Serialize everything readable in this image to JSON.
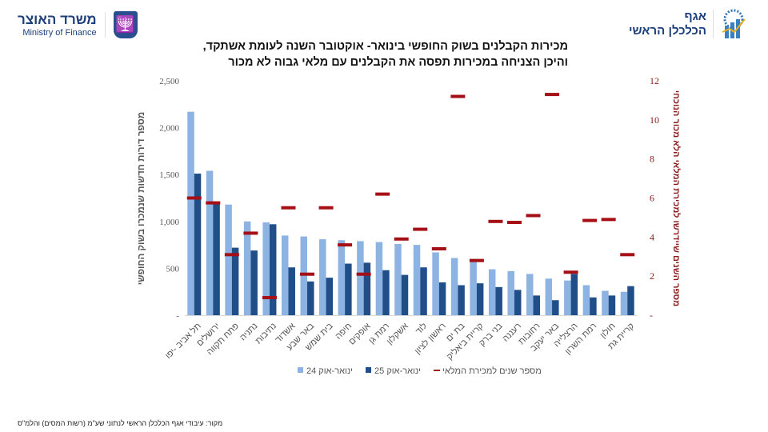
{
  "header": {
    "left_logo": {
      "hebrew": "משרד האוצר",
      "english": "Ministry of Finance"
    },
    "right_logo": {
      "line1": "אגף",
      "line2": "הכלכלן הראשי"
    }
  },
  "title_lines": [
    "מכירות הקבלנים בשוק החופשי בינואר- אוקטובר השנה לעומת אשתקד,",
    "והיכן הצניחה במכירות תפסה את הקבלנים עם מלאי גבוה לא מכור"
  ],
  "source": "מקור: עיבודי אגף הכלכלן הראשי לנתוני שע\"מ (רשות המסים) והלמ\"ס",
  "chart_data": {
    "type": "bar",
    "title": "מכירות הקבלנים בשוק החופשי בינואר- אוקטובר השנה לעומת אשתקד, והיכן הצניחה במכירות תפסה את הקבלנים עם מלאי גבוה לא מכור",
    "ylabel": "מספר דירות חדשות שנמכרו בשוק החופשי",
    "y2label": "מספר השנים שיידרשו למכירת המלאי הלא מכור הנוכחי",
    "ylim": [
      0,
      2500
    ],
    "y2lim": [
      0,
      12
    ],
    "yticks": [
      "-",
      "500",
      "1,000",
      "1,500",
      "2,000",
      "2,500"
    ],
    "y2ticks": [
      "-",
      "2",
      "4",
      "6",
      "8",
      "10",
      "12"
    ],
    "categories": [
      "תל אביב -יפו",
      "ירושלים",
      "פתח תקווה",
      "נתניה",
      "נתיבות",
      "אשדוד",
      "באר שבע",
      "בית שמש",
      "חיפה",
      "אופקים",
      "רמת גן",
      "אשקלון",
      "לוד",
      "ראשון לציון",
      "בת ים",
      "קריית ביאליק",
      "בני ברק",
      "רעננה",
      "רחובות",
      "באר יעקב",
      "הרצלייה",
      "רמת השרון",
      "חולון",
      "קריית גת"
    ],
    "series": [
      {
        "name": "ינואר-אוק 24",
        "type": "bar",
        "axis": "left",
        "color": "#8db3e2",
        "values": [
          2170,
          1540,
          1180,
          1000,
          990,
          850,
          840,
          810,
          800,
          790,
          780,
          760,
          750,
          670,
          610,
          600,
          490,
          470,
          440,
          390,
          370,
          320,
          260,
          250
        ]
      },
      {
        "name": "ינואר-אוק 25",
        "type": "bar",
        "axis": "left",
        "color": "#1f4e89",
        "values": [
          1510,
          1200,
          720,
          690,
          970,
          510,
          360,
          400,
          550,
          560,
          480,
          430,
          510,
          350,
          320,
          340,
          300,
          270,
          210,
          160,
          440,
          190,
          210,
          310
        ]
      },
      {
        "name": "מספר שנים למכירת המלאי",
        "type": "marker",
        "axis": "right",
        "color": "#a50f15",
        "values": [
          6.0,
          5.75,
          3.1,
          4.2,
          0.9,
          5.5,
          2.1,
          5.5,
          3.6,
          2.1,
          6.2,
          3.9,
          4.4,
          3.4,
          11.2,
          2.8,
          4.8,
          4.75,
          5.1,
          11.3,
          2.2,
          4.85,
          4.9,
          3.1
        ]
      }
    ],
    "legend_position": "bottom",
    "grid": false
  }
}
